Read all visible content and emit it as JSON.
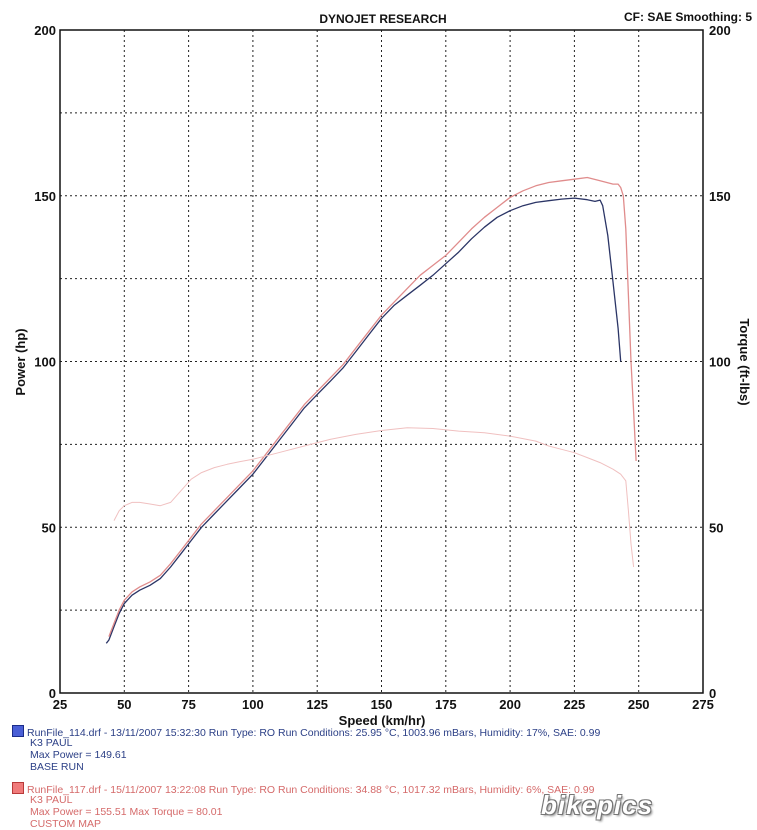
{
  "chart_data": {
    "type": "line",
    "title": "DYNOJET RESEARCH",
    "header_right": "CF: SAE  Smoothing: 5",
    "xlabel": "Speed (km/hr)",
    "ylabel_left": "Power (hp)",
    "ylabel_right": "Torque (ft-lbs)",
    "xlim": [
      25,
      275
    ],
    "ylim": [
      0,
      200
    ],
    "x_ticks": [
      "25",
      "50",
      "75",
      "100",
      "125",
      "150",
      "175",
      "200",
      "225",
      "250",
      "275"
    ],
    "y_ticks_left": [
      "0",
      "50",
      "100",
      "150",
      "200"
    ],
    "y_ticks_right": [
      "0",
      "50",
      "100",
      "150",
      "200"
    ],
    "grid": true,
    "series": [
      {
        "name": "BASE RUN power",
        "color": "#2b3566",
        "x": [
          43,
          44,
          46,
          48,
          50,
          53,
          56,
          60,
          64,
          68,
          72,
          76,
          80,
          85,
          90,
          95,
          100,
          105,
          110,
          115,
          120,
          125,
          130,
          135,
          140,
          145,
          150,
          155,
          160,
          165,
          170,
          175,
          180,
          185,
          190,
          195,
          200,
          205,
          210,
          215,
          220,
          225,
          230,
          233,
          235,
          236,
          238,
          240,
          242,
          243
        ],
        "y": [
          15,
          16,
          20,
          24,
          27,
          29.5,
          31,
          32.5,
          34.5,
          38,
          42,
          46,
          50,
          54,
          58,
          62,
          66,
          71,
          76,
          81,
          86,
          90,
          94,
          98,
          103,
          108,
          113,
          117,
          120,
          123,
          126,
          129.5,
          133,
          137,
          140.5,
          143.5,
          145.5,
          147,
          148,
          148.5,
          149,
          149.3,
          148.8,
          148.3,
          148.7,
          147,
          138,
          124,
          110,
          100
        ]
      },
      {
        "name": "CUSTOM MAP power",
        "color": "#e08c8c",
        "x": [
          44,
          46,
          48,
          50,
          53,
          56,
          60,
          64,
          68,
          72,
          76,
          80,
          85,
          90,
          95,
          100,
          105,
          110,
          115,
          120,
          125,
          130,
          135,
          140,
          145,
          150,
          155,
          160,
          165,
          170,
          175,
          180,
          185,
          190,
          195,
          200,
          205,
          210,
          215,
          220,
          225,
          230,
          235,
          240,
          242,
          243,
          244,
          245,
          246,
          247,
          248,
          249
        ],
        "y": [
          17,
          21,
          25,
          28,
          30.5,
          32,
          33.5,
          35.5,
          39,
          43,
          47,
          51,
          55,
          59,
          63,
          67,
          72,
          77,
          82,
          87,
          91,
          95,
          99,
          104,
          109,
          114,
          118,
          122,
          126,
          129,
          132,
          136,
          140,
          143.5,
          146.5,
          149.5,
          151.5,
          153,
          154,
          154.5,
          155,
          155.5,
          154.5,
          153.5,
          153.5,
          152.5,
          150,
          140,
          120,
          100,
          85,
          70
        ]
      },
      {
        "name": "CUSTOM MAP torque",
        "color": "#f0c0c0",
        "x": [
          46,
          48,
          50,
          53,
          56,
          60,
          64,
          68,
          72,
          76,
          80,
          85,
          90,
          95,
          100,
          110,
          120,
          130,
          140,
          150,
          160,
          170,
          180,
          190,
          200,
          210,
          215,
          220,
          225,
          230,
          235,
          240,
          243,
          245,
          246,
          247,
          248
        ],
        "y": [
          52,
          55,
          56.5,
          57.5,
          57.5,
          57,
          56.5,
          57.5,
          61,
          64.5,
          66.5,
          68,
          69,
          69.8,
          70.5,
          72.5,
          74.5,
          76.5,
          78,
          79.2,
          80,
          79.8,
          79,
          78.5,
          77.5,
          76,
          74.5,
          73.5,
          72.5,
          71,
          69.5,
          67.5,
          66,
          64,
          55,
          45,
          38
        ]
      }
    ],
    "legend": [
      {
        "file": "RunFile_114.drf - 13/11/2007 15:32:30  Run Type: RO  Run Conditions: 25.95 °C, 1003.96 mBars,  Humidity:  17%, SAE: 0.99",
        "line2": "K3            PAUL",
        "line3": "Max Power = 149.61",
        "line4": "BASE RUN",
        "color": "#2b3f86"
      },
      {
        "file": "RunFile_117.drf - 15/11/2007 13:22:08  Run Type: RO  Run Conditions: 34.88 °C, 1017.32 mBars,  Humidity:  6%, SAE: 0.99",
        "line2": "K3            PAUL",
        "line3": "Max Power = 155.51  Max Torque = 80.01",
        "line4": "CUSTOM MAP",
        "color": "#d56a6a"
      }
    ]
  },
  "watermark": "bikepics"
}
